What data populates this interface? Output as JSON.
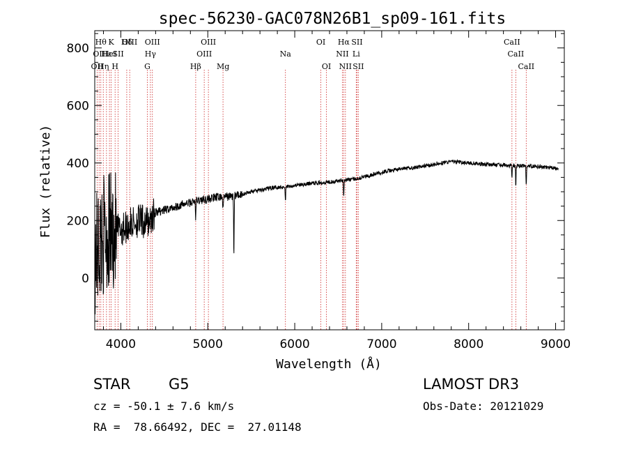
{
  "chart_data": {
    "type": "line",
    "title": "spec-56230-GAC078N26B1_sp09-161.fits",
    "xlabel": "Wavelength (Å)",
    "ylabel": "Flux (relative)",
    "xlim": [
      3700,
      9100
    ],
    "ylim": [
      -180,
      860
    ],
    "x_ticks": [
      4000,
      5000,
      6000,
      7000,
      8000,
      9000
    ],
    "y_ticks": [
      0,
      200,
      400,
      600,
      800
    ],
    "x_tick_labels": [
      "4000",
      "5000",
      "6000",
      "7000",
      "8000",
      "9000"
    ],
    "y_tick_labels": [
      "0",
      "200",
      "400",
      "600",
      "800"
    ],
    "line_color": "#000000",
    "marker_color": "#cc2222",
    "continuum": [
      [
        3700,
        80
      ],
      [
        3800,
        150
      ],
      [
        3900,
        160
      ],
      [
        4000,
        170
      ],
      [
        4100,
        185
      ],
      [
        4200,
        200
      ],
      [
        4300,
        190
      ],
      [
        4400,
        230
      ],
      [
        4500,
        235
      ],
      [
        4600,
        245
      ],
      [
        4700,
        255
      ],
      [
        4800,
        262
      ],
      [
        4900,
        270
      ],
      [
        5000,
        275
      ],
      [
        5100,
        280
      ],
      [
        5200,
        283
      ],
      [
        5300,
        285
      ],
      [
        5400,
        292
      ],
      [
        5500,
        300
      ],
      [
        5600,
        305
      ],
      [
        5700,
        312
      ],
      [
        5800,
        316
      ],
      [
        5900,
        318
      ],
      [
        6000,
        322
      ],
      [
        6100,
        325
      ],
      [
        6200,
        330
      ],
      [
        6300,
        332
      ],
      [
        6400,
        335
      ],
      [
        6500,
        338
      ],
      [
        6600,
        342
      ],
      [
        6700,
        345
      ],
      [
        6800,
        352
      ],
      [
        6900,
        360
      ],
      [
        7000,
        368
      ],
      [
        7200,
        378
      ],
      [
        7400,
        385
      ],
      [
        7600,
        395
      ],
      [
        7800,
        405
      ],
      [
        8000,
        400
      ],
      [
        8200,
        395
      ],
      [
        8400,
        392
      ],
      [
        8600,
        390
      ],
      [
        8800,
        388
      ],
      [
        8950,
        382
      ],
      [
        9030,
        380
      ]
    ],
    "absorption_features": [
      {
        "x": 4861,
        "depth": 60
      },
      {
        "x": 5175,
        "depth": 50
      },
      {
        "x": 5300,
        "depth": 215
      },
      {
        "x": 5893,
        "depth": 55
      },
      {
        "x": 6563,
        "depth": 60
      },
      {
        "x": 8498,
        "depth": 40
      },
      {
        "x": 8542,
        "depth": 75
      },
      {
        "x": 8662,
        "depth": 65
      }
    ],
    "line_markers": [
      {
        "x": 3727,
        "label": "OII",
        "row": 2
      },
      {
        "x": 3750,
        "label": "OII",
        "row": 1
      },
      {
        "x": 3770,
        "label": "Hθ",
        "row": 0
      },
      {
        "x": 3798,
        "label": "Hη",
        "row": 2
      },
      {
        "x": 3835,
        "label": "Hε",
        "row": 1
      },
      {
        "x": 3869,
        "label": "HeI",
        "row": 1
      },
      {
        "x": 3889,
        "label": "K",
        "row": 0
      },
      {
        "x": 3934,
        "label": "H",
        "row": 2
      },
      {
        "x": 3969,
        "label": "SII",
        "row": 1
      },
      {
        "x": 4068,
        "label": "Hδ",
        "row": 0
      },
      {
        "x": 4102,
        "label": "OIII",
        "row": 0
      },
      {
        "x": 4305,
        "label": "G",
        "row": 2
      },
      {
        "x": 4340,
        "label": "Hγ",
        "row": 1
      },
      {
        "x": 4363,
        "label": "OIII",
        "row": 0
      },
      {
        "x": 4861,
        "label": "Hβ",
        "row": 2
      },
      {
        "x": 4959,
        "label": "OIII",
        "row": 1
      },
      {
        "x": 5007,
        "label": "OIII",
        "row": 0
      },
      {
        "x": 5175,
        "label": "Mg",
        "row": 2
      },
      {
        "x": 5893,
        "label": "Na",
        "row": 1
      },
      {
        "x": 6300,
        "label": "OI",
        "row": 0
      },
      {
        "x": 6364,
        "label": "OI",
        "row": 2
      },
      {
        "x": 6548,
        "label": "NII",
        "row": 1
      },
      {
        "x": 6563,
        "label": "Hα",
        "row": 0
      },
      {
        "x": 6583,
        "label": "NII",
        "row": 2
      },
      {
        "x": 6707,
        "label": "Li",
        "row": 1
      },
      {
        "x": 6716,
        "label": "SII",
        "row": 0
      },
      {
        "x": 6731,
        "label": "SII",
        "row": 2
      },
      {
        "x": 8498,
        "label": "CaII",
        "row": 0
      },
      {
        "x": 8542,
        "label": "CaII",
        "row": 1
      },
      {
        "x": 8662,
        "label": "CaII",
        "row": 2
      }
    ]
  },
  "info": {
    "object_class": "STAR",
    "subclass": "G5",
    "survey": "LAMOST DR3",
    "redshift": "cz = -50.1 ± 7.6 km/s",
    "obs_date": "Obs-Date: 20121029",
    "coords": "RA =  78.66492, DEC =  27.01148"
  }
}
